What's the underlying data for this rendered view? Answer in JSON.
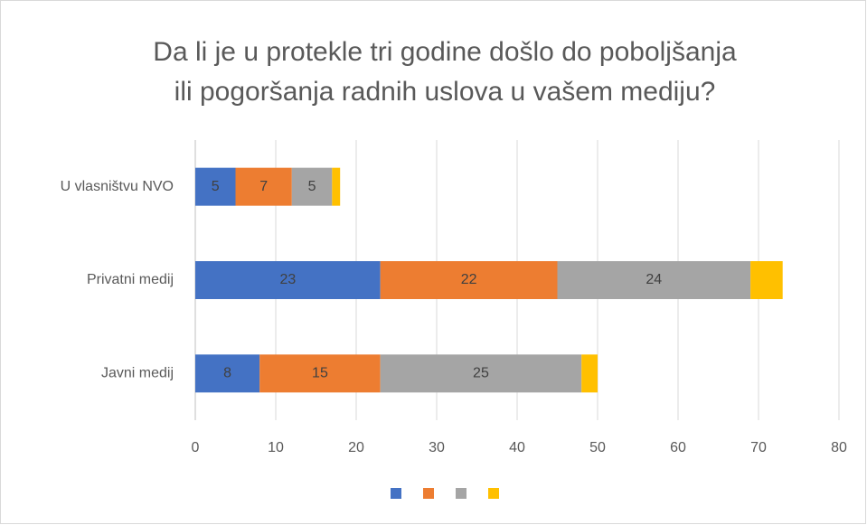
{
  "chart_data": {
    "type": "stacked-bar-horizontal",
    "title": [
      "Da li je u protekle tri godine došlo do poboljšanja",
      "ili pogoršanja radnih uslova u vašem mediju?"
    ],
    "categories": [
      "U vlasništvu NVO",
      "Privatni medij",
      "Javni medij"
    ],
    "series": [
      {
        "color": "#4472c4",
        "values": [
          5,
          23,
          8
        ],
        "labels": true
      },
      {
        "color": "#ed7d31",
        "values": [
          7,
          22,
          15
        ],
        "labels": true
      },
      {
        "color": "#a5a5a5",
        "values": [
          5,
          24,
          25
        ],
        "labels": true
      },
      {
        "color": "#ffc000",
        "values": [
          1,
          4,
          2
        ],
        "labels": false
      }
    ],
    "xlim": [
      0,
      80
    ],
    "xticks": [
      0,
      10,
      20,
      30,
      40,
      50,
      60,
      70,
      80
    ],
    "grid": true,
    "legend": "bottom"
  }
}
